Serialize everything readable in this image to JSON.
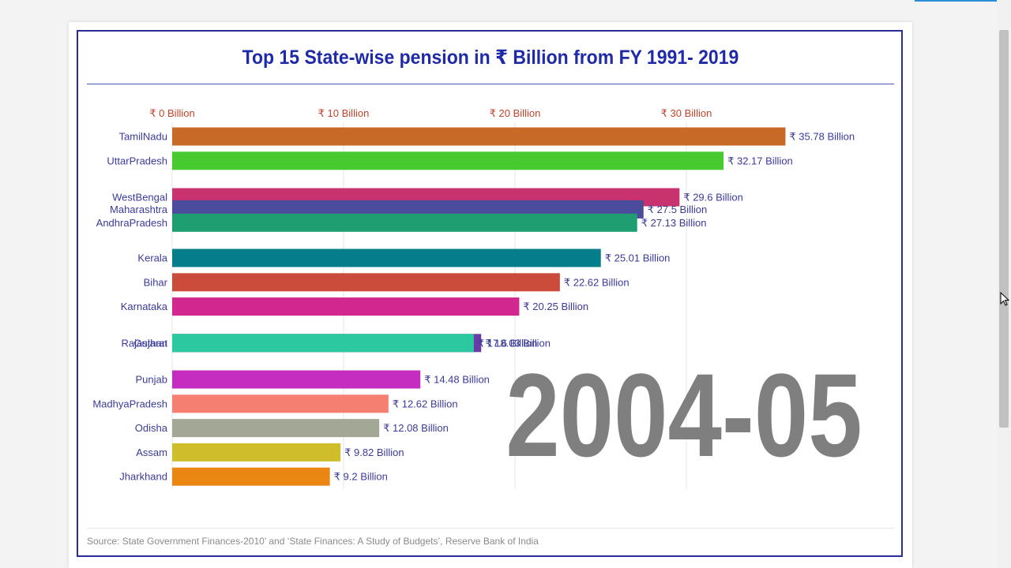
{
  "page": {
    "background": "#f3f3f3",
    "header_accent": "#2a8dd8"
  },
  "chart": {
    "title": "Top 15 State-wise pension in ₹ Billion from FY 1991- 2019",
    "period_label": "2004-05",
    "source": "Source: State Government Finances-2010’ and ‘State Finances: A Study of Budgets’, Reserve Bank of India",
    "colors": {
      "title": "#1f2aa8",
      "axis_ticks": "#c0442a",
      "labels": "#3a3a9a",
      "watermark": "#7f7f7f",
      "frame": "#2b2b9a"
    }
  },
  "chart_data": {
    "type": "bar",
    "orientation": "horizontal",
    "title": "Top 15 State-wise pension in ₹ Billion from FY 1991- 2019",
    "xlabel": "",
    "ylabel": "",
    "xlim": [
      0,
      40
    ],
    "x_ticks": [
      0,
      10,
      20,
      30
    ],
    "x_tick_labels": [
      "₹ 0 Billion",
      "₹ 10 Billion",
      "₹ 20 Billion",
      "₹ 30 Billion"
    ],
    "tick_position": "top",
    "grid": true,
    "value_label_prefix": "₹ ",
    "value_label_suffix": " Billion",
    "bars": [
      {
        "category": "TamilNadu",
        "value": 35.78,
        "label": "₹ 35.78 Billion",
        "color": "#c86a27",
        "rank": 1
      },
      {
        "category": "UttarPradesh",
        "value": 32.17,
        "label": "₹ 32.17 Billion",
        "color": "#47c930",
        "rank": 2
      },
      {
        "category": "WestBengal",
        "value": 29.6,
        "label": "₹ 29.6 Billion",
        "color": "#c8326e",
        "rank": 3.5
      },
      {
        "category": "Maharashtra",
        "value": 27.5,
        "label": "₹ 27.5 Billion",
        "color": "#4c4c9c",
        "rank": 4
      },
      {
        "category": "AndhraPradesh",
        "value": 27.13,
        "label": "₹ 27.13 Billion",
        "color": "#1f9e72",
        "rank": 4.55
      },
      {
        "category": "Kerala",
        "value": 25.01,
        "label": "₹ 25.01 Billion",
        "color": "#067d8a",
        "rank": 6
      },
      {
        "category": "Bihar",
        "value": 22.62,
        "label": "₹ 22.62 Billion",
        "color": "#cc4c3c",
        "rank": 7
      },
      {
        "category": "Karnataka",
        "value": 20.25,
        "label": "₹ 20.25 Billion",
        "color": "#d1278e",
        "rank": 8
      },
      {
        "category": "Rajasthan",
        "value": 18.03,
        "label": "₹ 18.03 Billion",
        "color": "#6a3aa6",
        "rank": 9.5
      },
      {
        "category": "Gujarat",
        "value": 17.6,
        "label": "₹ 17.6 Billion",
        "color": "#2cc8a0",
        "rank": 9.5
      },
      {
        "category": "Punjab",
        "value": 14.48,
        "label": "₹ 14.48 Billion",
        "color": "#c52cc0",
        "rank": 11
      },
      {
        "category": "MadhyaPradesh",
        "value": 12.62,
        "label": "₹ 12.62 Billion",
        "color": "#f57f70",
        "rank": 12
      },
      {
        "category": "Odisha",
        "value": 12.08,
        "label": "₹ 12.08 Billion",
        "color": "#a3a795",
        "rank": 13
      },
      {
        "category": "Assam",
        "value": 9.82,
        "label": "₹ 9.82 Billion",
        "color": "#cfbe2a",
        "rank": 14
      },
      {
        "category": "Jharkhand",
        "value": 9.2,
        "label": "₹ 9.2 Billion",
        "color": "#ea8612",
        "rank": 15
      }
    ]
  }
}
